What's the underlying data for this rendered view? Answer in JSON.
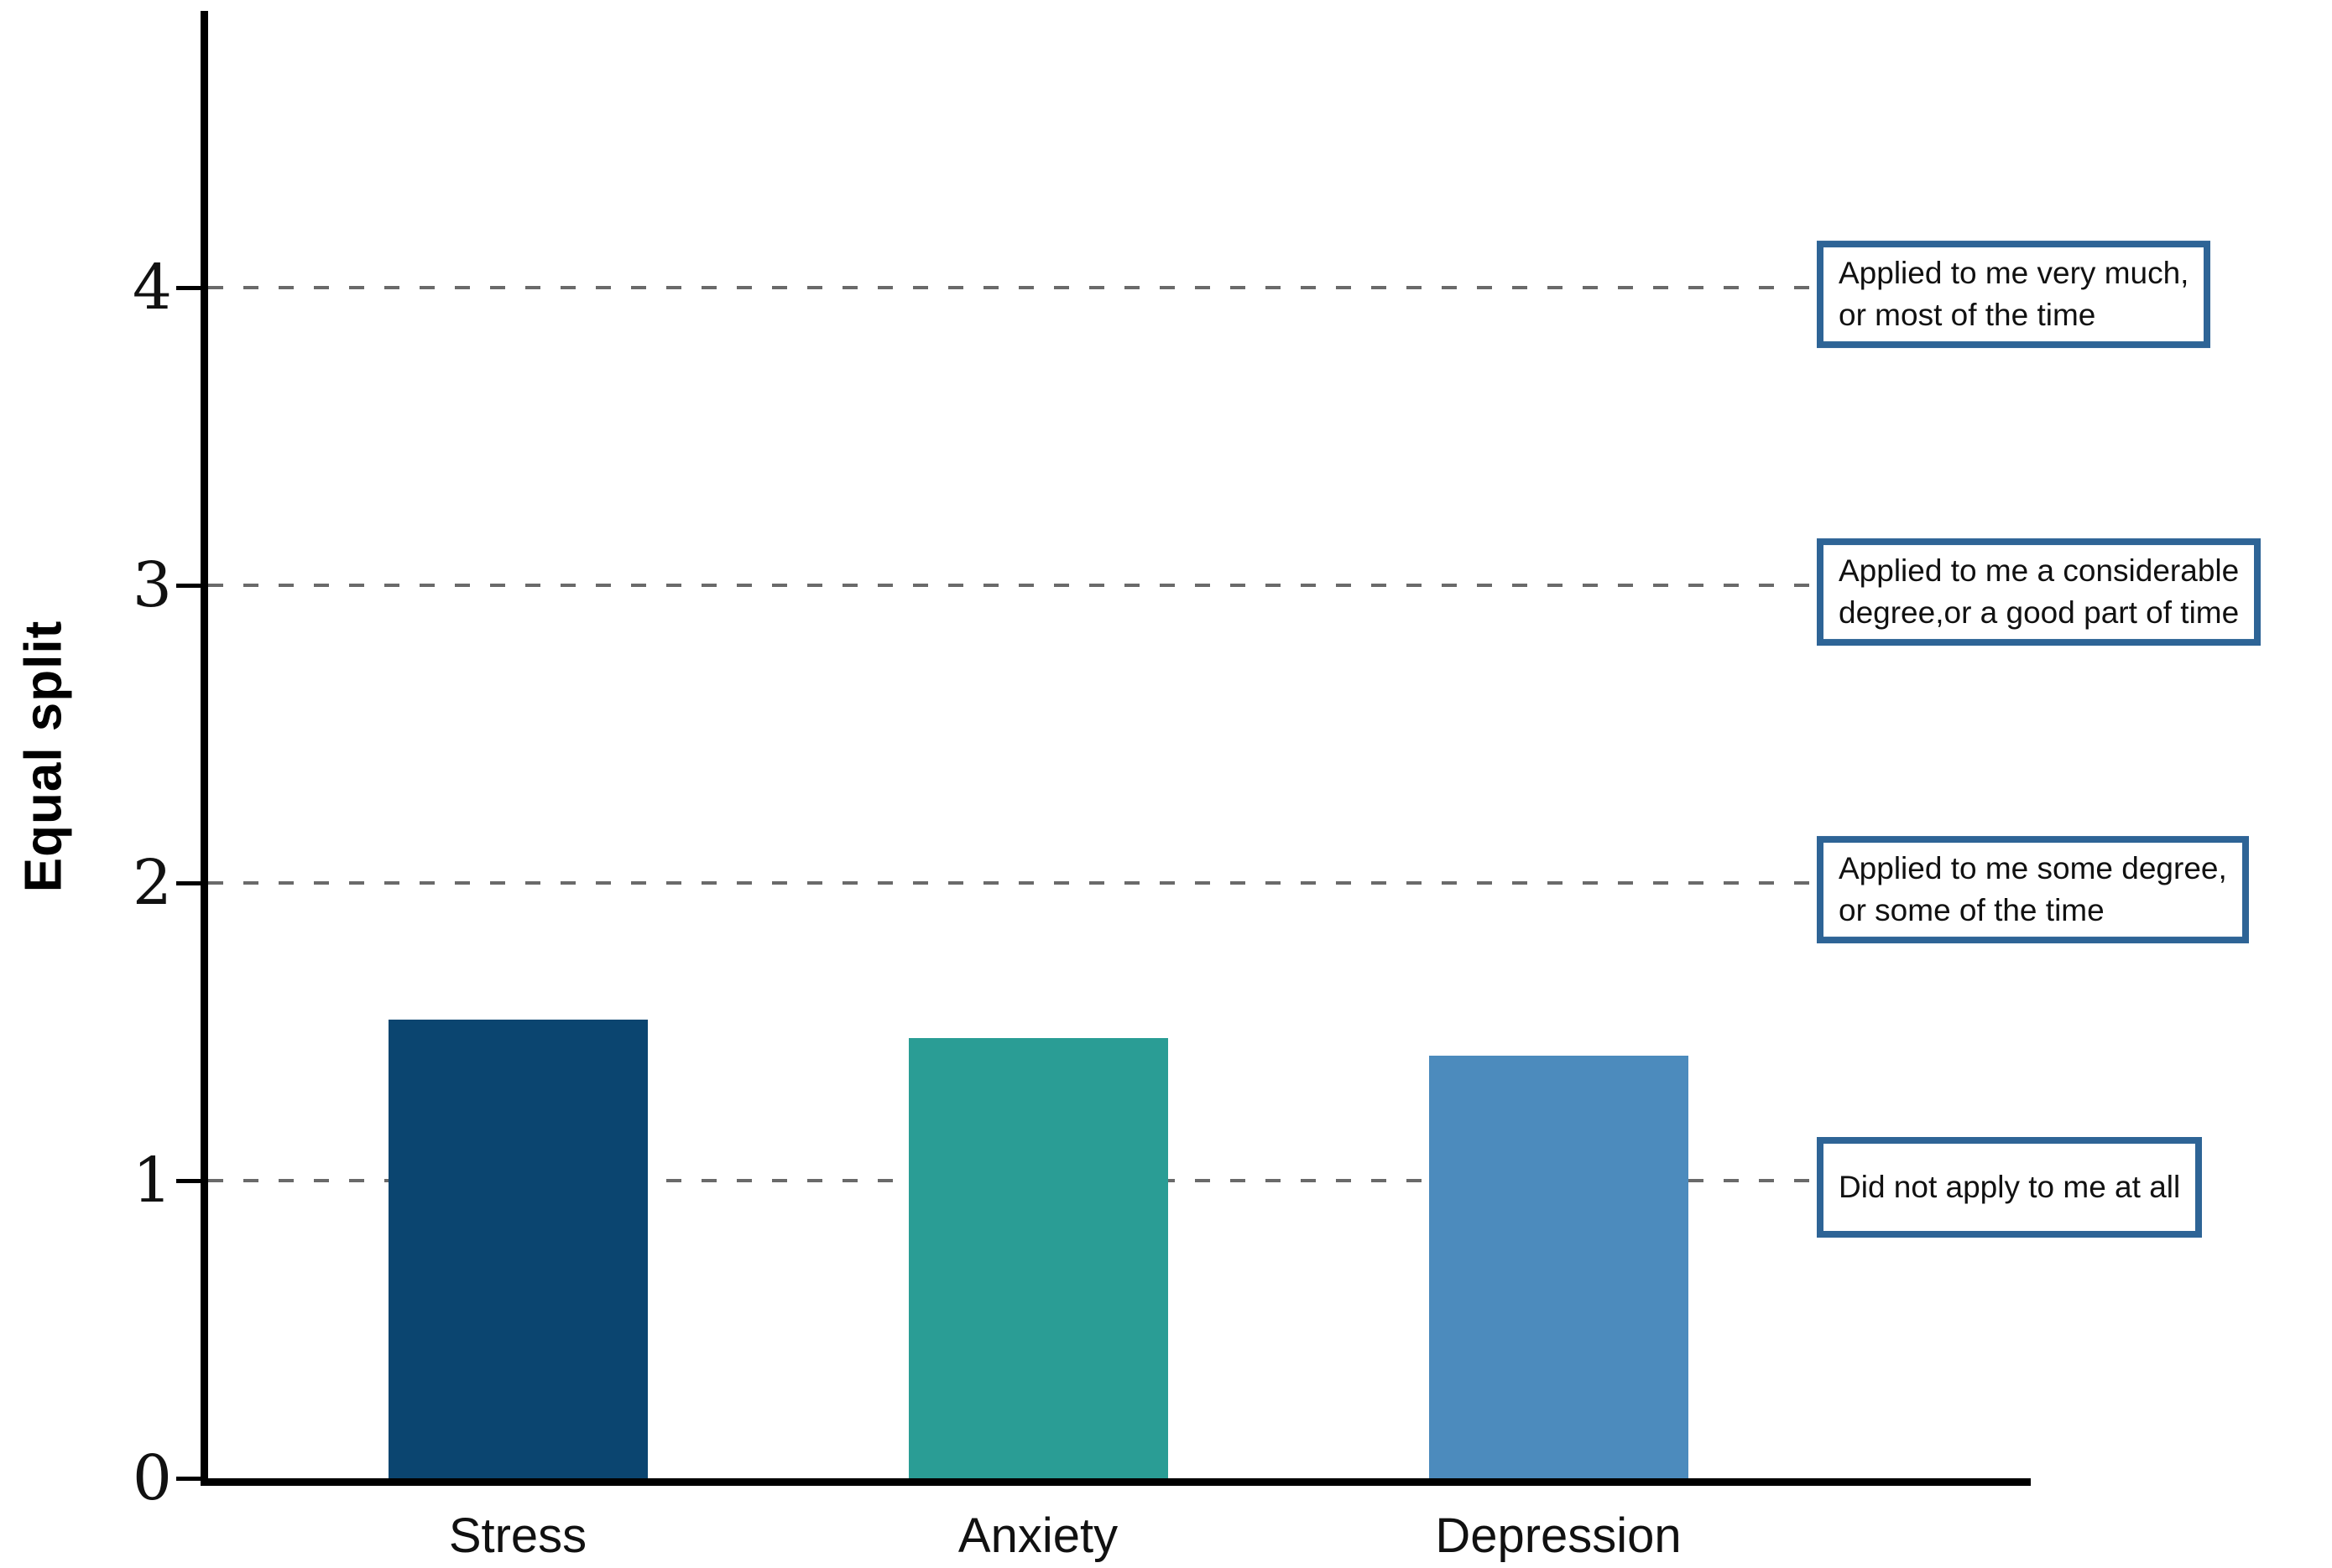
{
  "chart_data": {
    "type": "bar",
    "title": "",
    "xlabel": "",
    "ylabel": "Equal split",
    "categories": [
      "Stress",
      "Anxiety",
      "Depression"
    ],
    "values": [
      1.54,
      1.48,
      1.42
    ],
    "bar_colors": [
      "#0b4570",
      "#2a9d95",
      "#4c8bbd"
    ],
    "ylim": [
      0,
      4.9
    ],
    "yticks": [
      0,
      1,
      2,
      3,
      4
    ],
    "grid": "horizontal dashed gridlines at y = 1, 2, 3, 4",
    "gridline_color": "#6a6a6a",
    "axis_color": "#000000",
    "legend_position": "none",
    "annotations": [
      {
        "y": 4,
        "text": "Applied to me very much,\nor most of the time"
      },
      {
        "y": 3,
        "text": "Applied to me a considerable\ndegree,or a good part of time"
      },
      {
        "y": 2,
        "text": "Applied to me some degree,\nor some of the time"
      },
      {
        "y": 1,
        "text": "Did not apply to me at all"
      }
    ],
    "annotation_border_color": "#2e6496",
    "annotation_text_color": "#111111"
  }
}
